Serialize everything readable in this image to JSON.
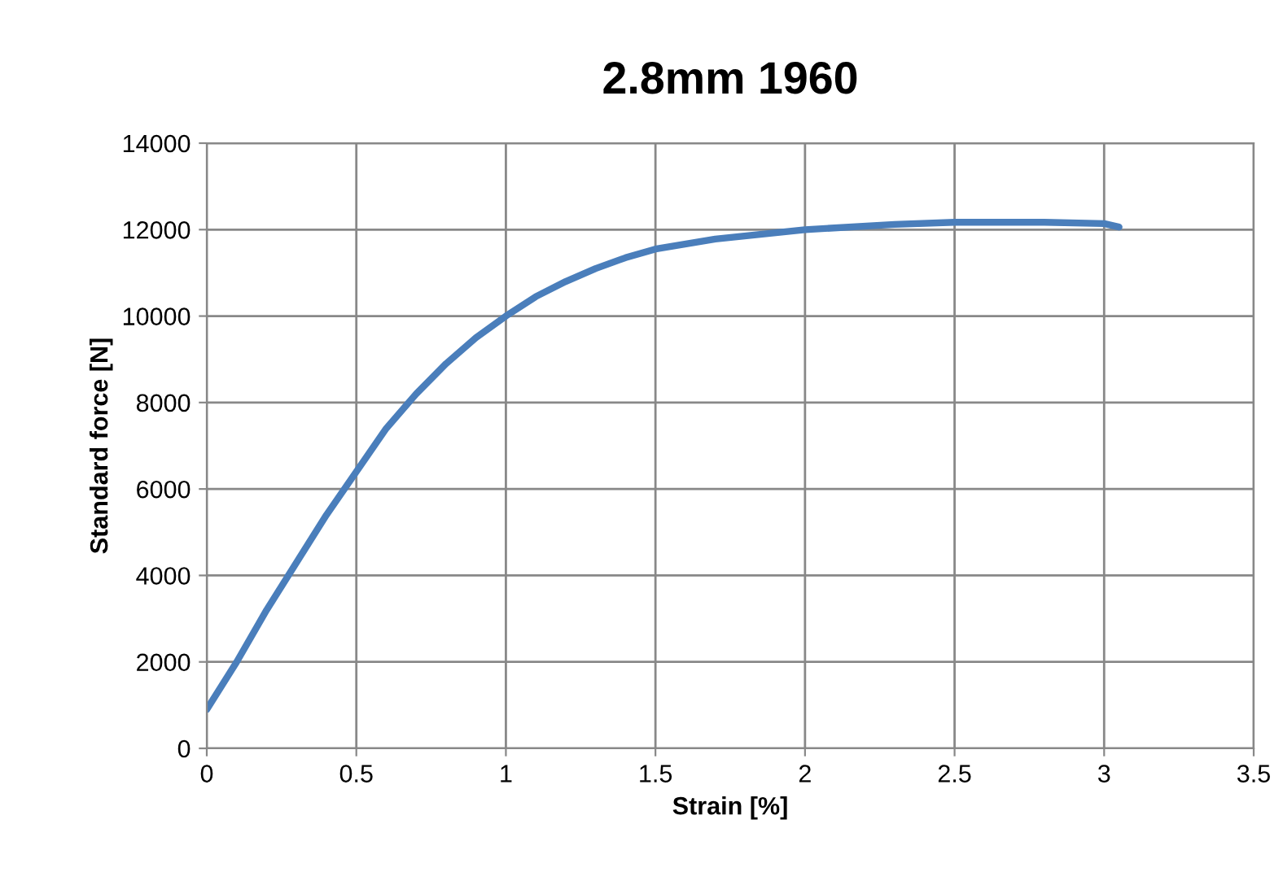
{
  "chart_data": {
    "type": "line",
    "title": "2.8mm 1960",
    "xlabel": "Strain [%]",
    "ylabel": "Standard force [N]",
    "series": [
      {
        "color": "#4a7ebb",
        "x": [
          0,
          0.1,
          0.2,
          0.3,
          0.4,
          0.5,
          0.6,
          0.7,
          0.8,
          0.9,
          1.0,
          1.1,
          1.2,
          1.3,
          1.4,
          1.5,
          1.7,
          2.0,
          2.3,
          2.5,
          2.8,
          3.0,
          3.05
        ],
        "values": [
          900,
          2000,
          3200,
          4300,
          5400,
          6400,
          7400,
          8200,
          8900,
          9500,
          10000,
          10450,
          10800,
          11100,
          11350,
          11550,
          11780,
          12000,
          12120,
          12170,
          12170,
          12140,
          12060
        ]
      }
    ],
    "xlim": [
      0,
      3.5
    ],
    "xticks": [
      0,
      0.5,
      1,
      1.5,
      2,
      2.5,
      3,
      3.5
    ],
    "ylim": [
      0,
      14000
    ],
    "yticks": [
      0,
      2000,
      4000,
      6000,
      8000,
      10000,
      12000,
      14000
    ],
    "grid": true,
    "marker": "none",
    "line_style": "solid"
  }
}
